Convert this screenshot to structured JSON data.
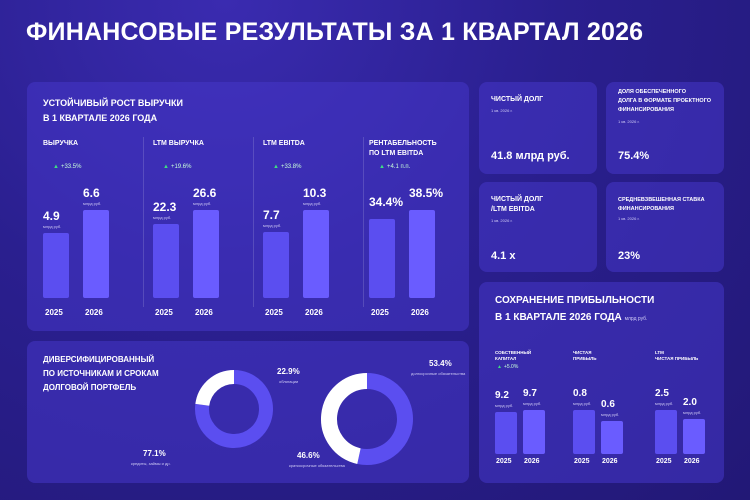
{
  "header": {
    "title": "ФИНАНСОВЫЕ РЕЗУЛЬТАТЫ ЗА 1 КВАРТАЛ 2026"
  },
  "revenue_panel": {
    "title_line1": "УСТОЙЧИВЫЙ РОСТ ВЫРУЧКИ",
    "title_line2": "В 1 КВАРТАЛЕ 2026 ГОДА",
    "groups": [
      {
        "head": "ВЫРУЧКА",
        "head2": "",
        "growth": "+33.5%",
        "v2025": "4.9",
        "v2026": "6.6",
        "unit": "млрд руб.",
        "y2025": "2025",
        "y2026": "2026"
      },
      {
        "head": "LTM ВЫРУЧКА",
        "head2": "",
        "growth": "+19.6%",
        "v2025": "22.3",
        "v2026": "26.6",
        "unit": "млрд руб.",
        "y2025": "2025",
        "y2026": "2026"
      },
      {
        "head": "LTM EBITDA",
        "head2": "",
        "growth": "+33.8%",
        "v2025": "7.7",
        "v2026": "10.3",
        "unit": "млрд руб.",
        "y2025": "2025",
        "y2026": "2026"
      },
      {
        "head": "РЕНТАБЕЛЬНОСТЬ",
        "head2": "ПО LTM EBITDA",
        "growth": "+4.1 п.п.",
        "v2025": "34.4%",
        "v2026": "38.5%",
        "unit": "",
        "y2025": "2025",
        "y2026": "2026"
      }
    ]
  },
  "kpis": {
    "net_debt": {
      "head1": "ЧИСТЫЙ ДОЛГ",
      "sub": "1 кв. 2026 г.",
      "value": "41.8 млрд руб."
    },
    "secured": {
      "head1": "ДОЛЯ ОБЕСПЕЧЕННОГО",
      "head2": "ДОЛГА В ФОРМАТЕ ПРОЕКТНОГО",
      "head3": "ФИНАНСИРОВАНИЯ",
      "sub": "1 кв. 2026 г.",
      "value": "75.4%"
    },
    "nd_ebitda": {
      "head1": "ЧИСТЫЙ ДОЛГ",
      "head2": "/LTM EBITDA",
      "sub": "1 кв. 2026 г.",
      "value": "4.1 x"
    },
    "wacd": {
      "head1": "СРЕДНЕВЗВЕШЕННАЯ СТАВКА",
      "head2": "ФИНАНСИРОВАНИЯ",
      "sub": "1 кв. 2026 г.",
      "value": "23%"
    }
  },
  "debt_panel": {
    "title_line1": "ДИВЕРСИФИЦИРОВАННЫЙ",
    "title_line2": "ПО ИСТОЧНИКАМ И СРОКАМ",
    "title_line3": "ДОЛГОВОЙ ПОРТФЕЛЬ",
    "donut1": {
      "big": "77.1%",
      "big_cap": "кредиты, займы и др.",
      "small": "22.9%",
      "small_cap": "облигации"
    },
    "donut2": {
      "big": "53.4%",
      "big_cap": "долгосрочные обязательства",
      "small": "46.6%",
      "small_cap": "краткосрочные обязательства"
    }
  },
  "profit_panel": {
    "title_line1": "СОХРАНЕНИЕ ПРИБЫЛЬНОСТИ",
    "title_line2": "В 1 КВАРТАЛЕ 2026 ГОДА",
    "title_unit": "млрд руб.",
    "groups": [
      {
        "head": "СОБСТВЕННЫЙ",
        "head2": "КАПИТАЛ",
        "growth": "+5.0%",
        "v2025": "9.2",
        "v2026": "9.7",
        "unit": "млрд руб.",
        "y2025": "2025",
        "y2026": "2026"
      },
      {
        "head": "ЧИСТАЯ",
        "head2": "ПРИБЫЛЬ",
        "growth": "",
        "v2025": "0.8",
        "v2026": "0.6",
        "unit": "млрд руб.",
        "y2025": "2025",
        "y2026": "2026"
      },
      {
        "head": "LTM",
        "head2": "ЧИСТАЯ ПРИБЫЛЬ",
        "growth": "",
        "v2025": "2.5",
        "v2026": "2.0",
        "unit": "млрд руб.",
        "y2025": "2025",
        "y2026": "2026"
      }
    ]
  },
  "colors": {
    "bar_2025": "#5b4ef0",
    "bar_2026": "#6a5cff",
    "growth": "#3ddc84",
    "donut_main": "#5b4ef0",
    "donut_minor": "#ffffff"
  },
  "chart_data": [
    {
      "type": "bar",
      "title": "УСТОЙЧИВЫЙ РОСТ ВЫРУЧКИ В 1 КВАРТАЛЕ 2026 ГОДА",
      "categories": [
        "2025",
        "2026"
      ],
      "series": [
        {
          "name": "ВЫРУЧКА",
          "values": [
            4.9,
            6.6
          ]
        },
        {
          "name": "LTM ВЫРУЧКА",
          "values": [
            22.3,
            26.6
          ]
        },
        {
          "name": "LTM EBITDA",
          "values": [
            7.7,
            10.3
          ]
        },
        {
          "name": "РЕНТАБЕЛЬНОСТЬ ПО LTM EBITDA",
          "values": [
            34.4,
            38.5
          ]
        }
      ]
    },
    {
      "type": "pie",
      "categories": [
        "кредиты, займы и др.",
        "облигации"
      ],
      "values": [
        77.1,
        22.9
      ]
    },
    {
      "type": "pie",
      "categories": [
        "долгосрочные обязательства",
        "краткосрочные обязательства"
      ],
      "values": [
        53.4,
        46.6
      ]
    },
    {
      "type": "bar",
      "title": "СОХРАНЕНИЕ ПРИБЫЛЬНОСТИ В 1 КВАРТАЛЕ 2026 ГОДА",
      "categories": [
        "2025",
        "2026"
      ],
      "series": [
        {
          "name": "СОБСТВЕННЫЙ КАПИТАЛ",
          "values": [
            9.2,
            9.7
          ]
        },
        {
          "name": "ЧИСТАЯ ПРИБЫЛЬ",
          "values": [
            0.8,
            0.6
          ]
        },
        {
          "name": "LTM ЧИСТАЯ ПРИБЫЛЬ",
          "values": [
            2.5,
            2.0
          ]
        }
      ]
    }
  ]
}
